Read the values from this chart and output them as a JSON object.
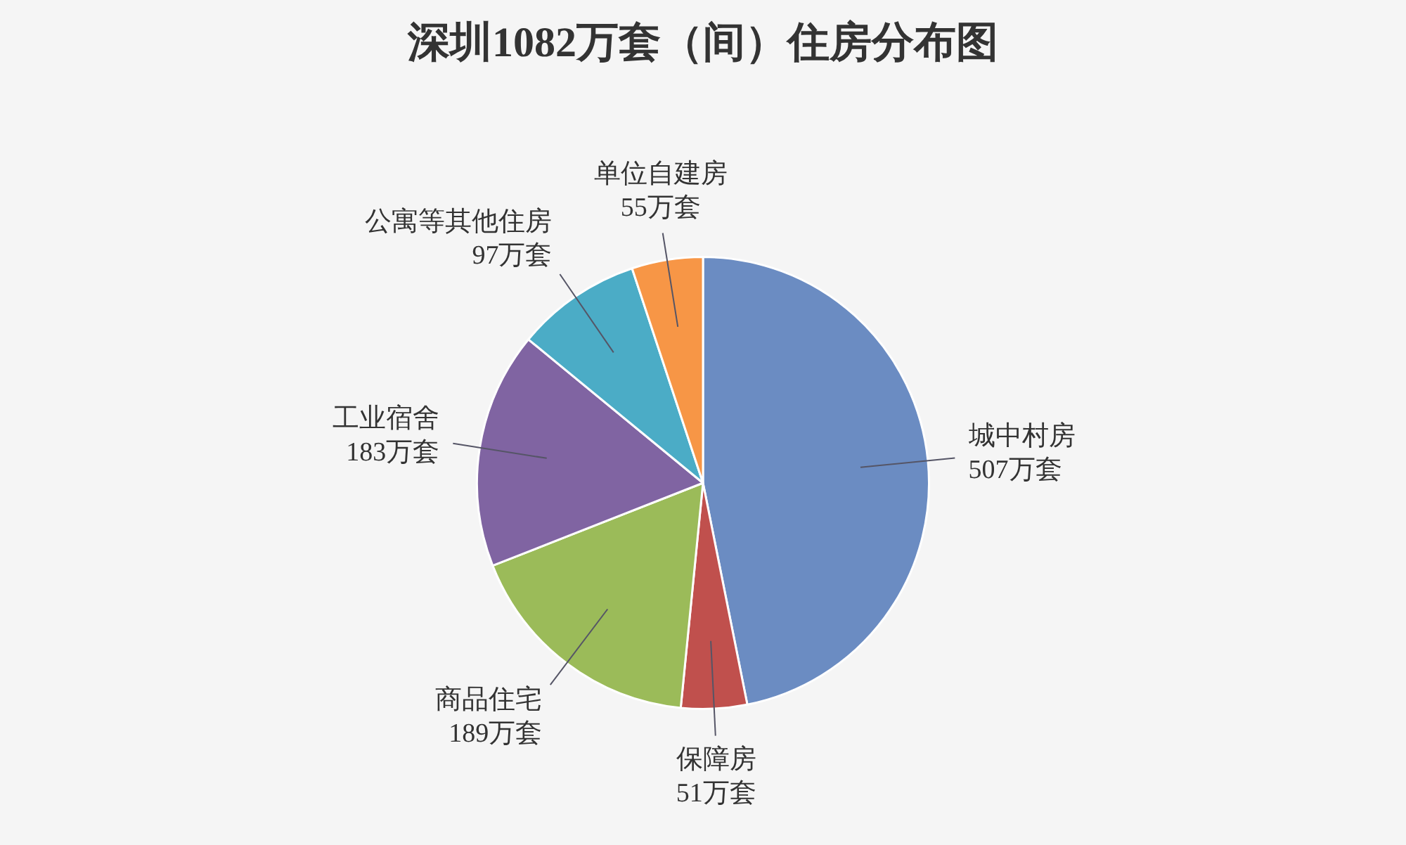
{
  "chart_data": {
    "type": "pie",
    "title": "深圳1082万套（间）住房分布图",
    "categories": [
      "城中村房",
      "保障房",
      "商品住宅",
      "工业宿舍",
      "公寓等其他住房",
      "单位自建房"
    ],
    "values": [
      507,
      51,
      189,
      183,
      97,
      55
    ],
    "value_labels": [
      "507万套",
      "51万套",
      "189万套",
      "183万套",
      "97万套",
      "55万套"
    ],
    "colors": [
      "#6b8cc2",
      "#c0504d",
      "#9bbb59",
      "#8064a2",
      "#4bacc6",
      "#f79646"
    ],
    "legend": false
  }
}
